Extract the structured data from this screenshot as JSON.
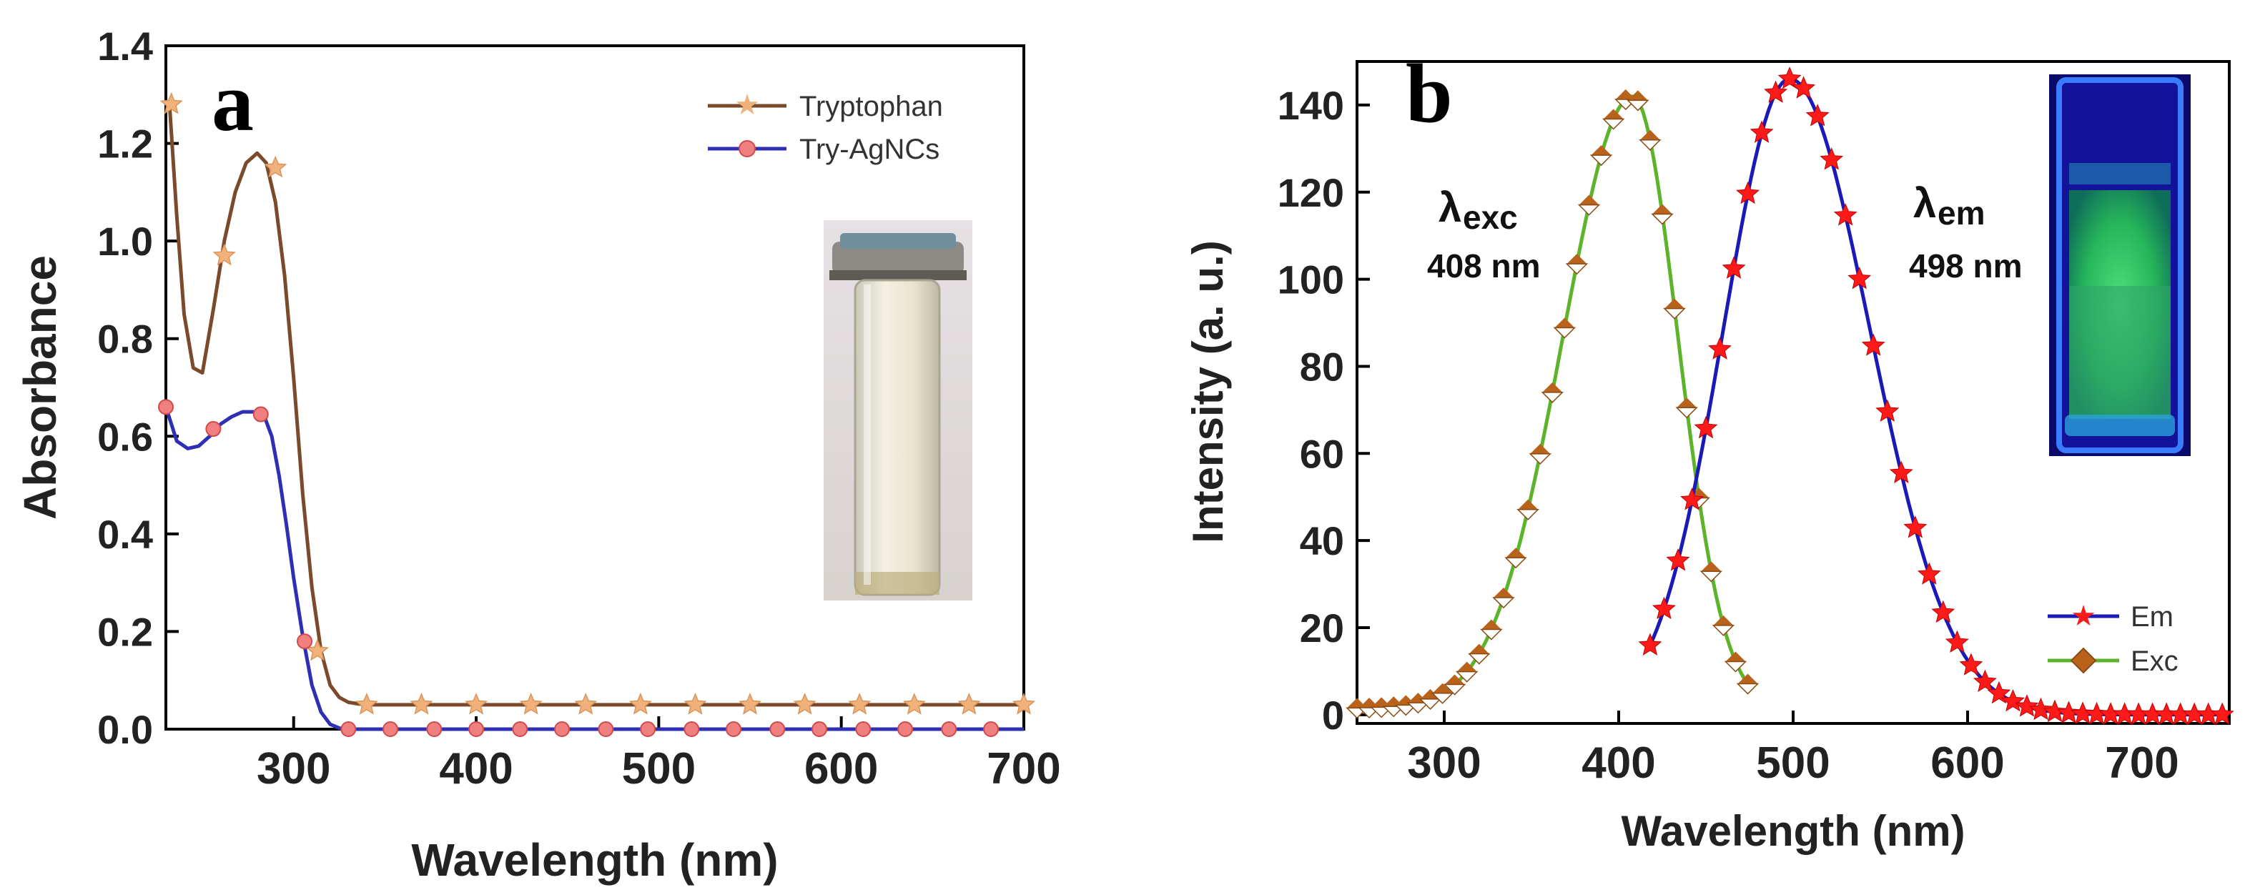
{
  "colors": {
    "tryptophan": "#7b4a2a",
    "tryptophan_marker": "#f0b27a",
    "agncs": "#2f2fb5",
    "agncs_marker": "#f08080",
    "em_line": "#1a1ab8",
    "em_marker": "#ff1a1a",
    "exc_line": "#5db32a",
    "exc_marker": "#b8621b"
  },
  "chart_data": [
    {
      "panel": "a",
      "type": "line",
      "panel_letter": "a",
      "xlabel": "Wavelength (nm)",
      "ylabel": "Absorbance",
      "xlim": [
        230,
        700
      ],
      "ylim": [
        0.0,
        1.4
      ],
      "xticks": [
        300,
        400,
        500,
        600,
        700
      ],
      "xtick_labels": [
        "300",
        "400",
        "500",
        "600",
        "700"
      ],
      "yticks": [
        0.0,
        0.2,
        0.4,
        0.6,
        0.8,
        1.0,
        1.2,
        1.4
      ],
      "ytick_labels": [
        "0.0",
        "0.2",
        "0.4",
        "0.6",
        "0.8",
        "1.0",
        "1.2",
        "1.4"
      ],
      "legend_position": "top-right",
      "inset": "photo of vial with pale yellow solution",
      "series": [
        {
          "name": "Tryptophan",
          "marker": "star",
          "x": [
            232,
            236,
            240,
            245,
            250,
            256,
            262,
            268,
            274,
            280,
            285,
            290,
            295,
            300,
            305,
            310,
            315,
            320,
            325,
            330,
            335,
            340,
            345,
            360,
            380,
            400,
            450,
            500,
            550,
            600,
            650,
            700
          ],
          "y": [
            1.28,
            1.05,
            0.85,
            0.74,
            0.73,
            0.86,
            1.0,
            1.1,
            1.16,
            1.18,
            1.16,
            1.08,
            0.93,
            0.72,
            0.48,
            0.29,
            0.16,
            0.09,
            0.065,
            0.055,
            0.052,
            0.05,
            0.05,
            0.05,
            0.05,
            0.05,
            0.05,
            0.05,
            0.05,
            0.05,
            0.05,
            0.05
          ],
          "markers_x": [
            233,
            262,
            290,
            313,
            340,
            370,
            400,
            430,
            460,
            490,
            520,
            550,
            580,
            610,
            640,
            670,
            700
          ],
          "markers_y": [
            1.28,
            0.97,
            1.15,
            0.16,
            0.05,
            0.05,
            0.05,
            0.05,
            0.05,
            0.05,
            0.05,
            0.05,
            0.05,
            0.05,
            0.05,
            0.05,
            0.05
          ]
        },
        {
          "name": "Try-AgNCs",
          "marker": "circle",
          "x": [
            230,
            236,
            242,
            248,
            254,
            260,
            266,
            272,
            278,
            284,
            288,
            292,
            296,
            300,
            305,
            310,
            315,
            320,
            325,
            330,
            340,
            360,
            400,
            450,
            500,
            550,
            600,
            650,
            700
          ],
          "y": [
            0.66,
            0.59,
            0.575,
            0.58,
            0.6,
            0.625,
            0.64,
            0.65,
            0.65,
            0.64,
            0.6,
            0.52,
            0.42,
            0.31,
            0.19,
            0.09,
            0.035,
            0.01,
            0.002,
            0.0,
            0.0,
            0.0,
            0.0,
            0.0,
            0.0,
            0.0,
            0.0,
            0.0,
            0.0
          ],
          "markers_x": [
            230,
            256,
            282,
            306,
            330,
            353,
            377,
            400,
            424,
            447,
            471,
            494,
            518,
            541,
            565,
            588,
            612,
            635,
            659,
            682
          ],
          "markers_y": [
            0.66,
            0.615,
            0.645,
            0.18,
            0.0,
            0.0,
            0.0,
            0.0,
            0.0,
            0.0,
            0.0,
            0.0,
            0.0,
            0.0,
            0.0,
            0.0,
            0.0,
            0.0,
            0.0,
            0.0
          ]
        }
      ]
    },
    {
      "panel": "b",
      "type": "line",
      "panel_letter": "b",
      "xlabel": "Wavelength (nm)",
      "ylabel": "Intensity (a. u.)",
      "xlim": [
        250,
        750
      ],
      "ylim": [
        -2,
        150
      ],
      "xticks": [
        300,
        400,
        500,
        600,
        700
      ],
      "xtick_labels": [
        "300",
        "400",
        "500",
        "600",
        "700"
      ],
      "yticks": [
        0,
        20,
        40,
        60,
        80,
        100,
        120,
        140
      ],
      "ytick_labels": [
        "0",
        "20",
        "40",
        "60",
        "80",
        "100",
        "120",
        "140"
      ],
      "legend_position": "bottom-right",
      "inset": "photo of cuvette glowing green under UV light",
      "annotations": [
        {
          "symbol": "λ",
          "subscript": "exc",
          "text": "408 nm",
          "x": 335,
          "y": 112
        },
        {
          "symbol": "λ",
          "subscript": "em",
          "text": "498 nm",
          "x": 558,
          "y": 112
        }
      ],
      "series": [
        {
          "name": "Em",
          "marker": "star",
          "peak_nm": 498,
          "peak_intensity": 146,
          "sigma_left": 38,
          "sigma_right": 46,
          "start_nm": 418,
          "end_nm": 750,
          "marker_step_nm": 8
        },
        {
          "name": "Exc",
          "marker": "diamond",
          "peak_nm": 408,
          "peak_intensity": 142,
          "sigma_left": 40,
          "sigma_right": 26,
          "baseline": 1.5,
          "start_nm": 250,
          "end_nm": 476,
          "marker_step_nm": 7
        }
      ]
    }
  ]
}
